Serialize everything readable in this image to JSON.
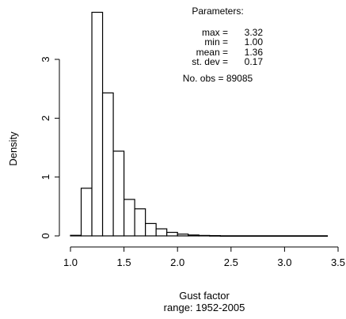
{
  "chart_data": {
    "type": "histogram",
    "xlabel": "Gust factor",
    "subtitle": "range:  1952-2005",
    "ylabel": "Density",
    "xlim": [
      1.0,
      3.5
    ],
    "ylim": [
      0,
      3.8
    ],
    "x_ticks": [
      "1.0",
      "1.5",
      "2.0",
      "2.5",
      "3.0",
      "3.5"
    ],
    "y_ticks": [
      "0",
      "1",
      "2",
      "3"
    ],
    "grid": false,
    "legend": "none",
    "bins": [
      {
        "start": 1.0,
        "end": 1.1,
        "density": 0.01
      },
      {
        "start": 1.1,
        "end": 1.2,
        "density": 0.81
      },
      {
        "start": 1.2,
        "end": 1.3,
        "density": 3.8
      },
      {
        "start": 1.3,
        "end": 1.4,
        "density": 2.43
      },
      {
        "start": 1.4,
        "end": 1.5,
        "density": 1.44
      },
      {
        "start": 1.5,
        "end": 1.6,
        "density": 0.62
      },
      {
        "start": 1.6,
        "end": 1.7,
        "density": 0.46
      },
      {
        "start": 1.7,
        "end": 1.8,
        "density": 0.21
      },
      {
        "start": 1.8,
        "end": 1.9,
        "density": 0.12
      },
      {
        "start": 1.9,
        "end": 2.0,
        "density": 0.06
      },
      {
        "start": 2.0,
        "end": 2.1,
        "density": 0.03
      },
      {
        "start": 2.1,
        "end": 2.2,
        "density": 0.015
      },
      {
        "start": 2.2,
        "end": 2.3,
        "density": 0.008
      },
      {
        "start": 2.3,
        "end": 2.4,
        "density": 0.005
      },
      {
        "start": 2.4,
        "end": 3.4,
        "density": 0.002
      }
    ],
    "annotation": {
      "title": "Parameters:",
      "rows": [
        {
          "label": "max =",
          "value": "3.32"
        },
        {
          "label": "min =",
          "value": "1.00"
        },
        {
          "label": "mean =",
          "value": "1.36"
        },
        {
          "label": "st. dev =",
          "value": "0.17"
        }
      ],
      "obs": "No. obs = 89085"
    }
  }
}
